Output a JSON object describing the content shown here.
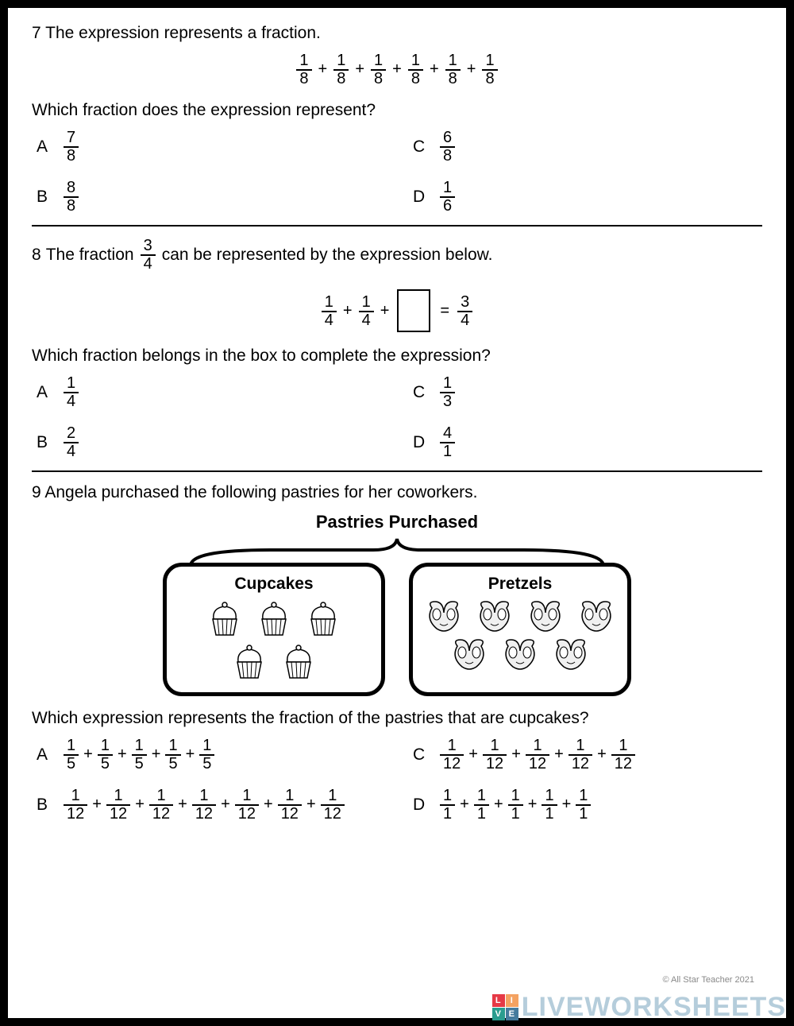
{
  "q7": {
    "number": "7",
    "prompt": "The expression represents a fraction.",
    "expression_terms": [
      {
        "n": "1",
        "d": "8"
      },
      {
        "n": "1",
        "d": "8"
      },
      {
        "n": "1",
        "d": "8"
      },
      {
        "n": "1",
        "d": "8"
      },
      {
        "n": "1",
        "d": "8"
      },
      {
        "n": "1",
        "d": "8"
      }
    ],
    "sub_prompt": "Which fraction does the expression represent?",
    "choices": {
      "A": {
        "n": "7",
        "d": "8"
      },
      "B": {
        "n": "8",
        "d": "8"
      },
      "C": {
        "n": "6",
        "d": "8"
      },
      "D": {
        "n": "1",
        "d": "6"
      }
    }
  },
  "q8": {
    "number": "8",
    "prompt_pre": "The fraction",
    "prompt_frac": {
      "n": "3",
      "d": "4"
    },
    "prompt_post": "can be represented by the expression below.",
    "expr_left": [
      {
        "n": "1",
        "d": "4"
      },
      {
        "n": "1",
        "d": "4"
      }
    ],
    "expr_right": {
      "n": "3",
      "d": "4"
    },
    "sub_prompt": "Which fraction belongs in the box to complete the expression?",
    "choices": {
      "A": {
        "n": "1",
        "d": "4"
      },
      "B": {
        "n": "2",
        "d": "4"
      },
      "C": {
        "n": "1",
        "d": "3"
      },
      "D": {
        "n": "4",
        "d": "1"
      }
    }
  },
  "q9": {
    "number": "9",
    "prompt": "Angela purchased the following pastries for her coworkers.",
    "diagram_title": "Pastries Purchased",
    "box1": {
      "title": "Cupcakes",
      "count": 5,
      "rows": [
        3,
        2
      ]
    },
    "box2": {
      "title": "Pretzels",
      "count": 7,
      "rows": [
        4,
        3
      ]
    },
    "sub_prompt": "Which expression represents the fraction of the pastries that are cupcakes?",
    "choices": {
      "A": [
        {
          "n": "1",
          "d": "5"
        },
        {
          "n": "1",
          "d": "5"
        },
        {
          "n": "1",
          "d": "5"
        },
        {
          "n": "1",
          "d": "5"
        },
        {
          "n": "1",
          "d": "5"
        }
      ],
      "B": [
        {
          "n": "1",
          "d": "12"
        },
        {
          "n": "1",
          "d": "12"
        },
        {
          "n": "1",
          "d": "12"
        },
        {
          "n": "1",
          "d": "12"
        },
        {
          "n": "1",
          "d": "12"
        },
        {
          "n": "1",
          "d": "12"
        },
        {
          "n": "1",
          "d": "12"
        }
      ],
      "C": [
        {
          "n": "1",
          "d": "12"
        },
        {
          "n": "1",
          "d": "12"
        },
        {
          "n": "1",
          "d": "12"
        },
        {
          "n": "1",
          "d": "12"
        },
        {
          "n": "1",
          "d": "12"
        }
      ],
      "D": [
        {
          "n": "1",
          "d": "1"
        },
        {
          "n": "1",
          "d": "1"
        },
        {
          "n": "1",
          "d": "1"
        },
        {
          "n": "1",
          "d": "1"
        },
        {
          "n": "1",
          "d": "1"
        }
      ]
    }
  },
  "labels": {
    "A": "A",
    "B": "B",
    "C": "C",
    "D": "D"
  },
  "watermark": "LIVEWORKSHEETS",
  "copyright": "© All Star Teacher 2021",
  "colors": {
    "border": "#000000",
    "watermark": "rgba(90,145,175,0.45)",
    "logo": [
      "#e63946",
      "#f4a261",
      "#2a9d8f",
      "#457b9d"
    ]
  }
}
